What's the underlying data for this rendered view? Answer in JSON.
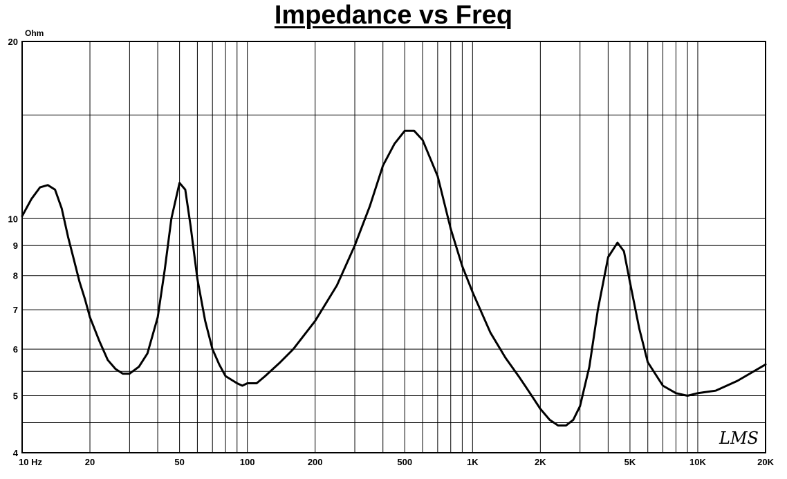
{
  "chart_data": {
    "type": "line",
    "title": "Impedance vs Freq",
    "ylabel": "Ohm",
    "xscale": "log",
    "yscale": "log",
    "xlim": [
      10,
      20000
    ],
    "ylim": [
      4,
      20
    ],
    "grid": true,
    "xtick_labels": [
      {
        "value": 10,
        "label": "10  Hz"
      },
      {
        "value": 20,
        "label": "20"
      },
      {
        "value": 50,
        "label": "50"
      },
      {
        "value": 100,
        "label": "100"
      },
      {
        "value": 200,
        "label": "200"
      },
      {
        "value": 500,
        "label": "500"
      },
      {
        "value": 1000,
        "label": "1K"
      },
      {
        "value": 2000,
        "label": "2K"
      },
      {
        "value": 5000,
        "label": "5K"
      },
      {
        "value": 10000,
        "label": "10K"
      },
      {
        "value": 20000,
        "label": "20K"
      }
    ],
    "ytick_labels": [
      {
        "value": 20,
        "label": "20"
      },
      {
        "value": 10,
        "label": "10"
      },
      {
        "value": 9,
        "label": "9"
      },
      {
        "value": 8,
        "label": "8"
      },
      {
        "value": 7,
        "label": "7"
      },
      {
        "value": 6,
        "label": "6"
      },
      {
        "value": 5,
        "label": "5"
      },
      {
        "value": 4,
        "label": "4"
      }
    ],
    "series": [
      {
        "color": "#000000",
        "x": [
          10,
          11,
          12,
          13,
          14,
          15,
          16,
          17,
          18,
          19,
          20,
          22,
          24,
          26,
          28,
          30,
          33,
          36,
          40,
          43,
          46,
          50,
          53,
          56,
          60,
          65,
          70,
          75,
          80,
          90,
          95,
          100,
          110,
          120,
          140,
          160,
          200,
          250,
          300,
          350,
          400,
          450,
          500,
          550,
          600,
          700,
          800,
          900,
          1000,
          1200,
          1400,
          1600,
          1800,
          2000,
          2200,
          2400,
          2600,
          2800,
          3000,
          3300,
          3600,
          4000,
          4400,
          4700,
          5000,
          5500,
          6000,
          7000,
          8000,
          9000,
          10000,
          12000,
          15000,
          20000
        ],
        "y": [
          10.1,
          10.8,
          11.3,
          11.4,
          11.2,
          10.4,
          9.3,
          8.5,
          7.8,
          7.3,
          6.8,
          6.2,
          5.75,
          5.55,
          5.45,
          5.45,
          5.6,
          5.9,
          6.8,
          8.2,
          10.0,
          11.5,
          11.2,
          9.7,
          7.9,
          6.7,
          6.0,
          5.65,
          5.4,
          5.25,
          5.2,
          5.25,
          5.25,
          5.4,
          5.7,
          6.0,
          6.7,
          7.7,
          9.0,
          10.5,
          12.3,
          13.4,
          14.1,
          14.1,
          13.6,
          11.8,
          9.6,
          8.3,
          7.5,
          6.4,
          5.8,
          5.4,
          5.05,
          4.75,
          4.55,
          4.45,
          4.45,
          4.55,
          4.8,
          5.6,
          7.0,
          8.6,
          9.1,
          8.8,
          7.8,
          6.5,
          5.7,
          5.2,
          5.05,
          5.0,
          5.05,
          5.1,
          5.3,
          5.65
        ]
      }
    ],
    "annotations": [
      {
        "text": "LMS"
      }
    ]
  }
}
